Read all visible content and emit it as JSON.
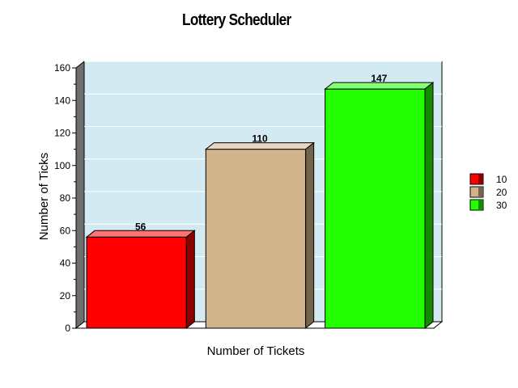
{
  "chart_data": {
    "type": "bar",
    "title": "Lottery Scheduler",
    "xlabel": "Number of Tickets",
    "ylabel": "Number of Ticks",
    "ylim": [
      0,
      160
    ],
    "yticks": [
      0,
      20,
      40,
      60,
      80,
      100,
      120,
      140,
      160
    ],
    "grid": true,
    "legend_position": "right",
    "series": [
      {
        "name": "10",
        "value": 56,
        "label": "56",
        "color": "#ff0000"
      },
      {
        "name": "20",
        "value": 110,
        "label": "110",
        "color": "#d2b48c"
      },
      {
        "name": "30",
        "value": 147,
        "label": "147",
        "color": "#22ff00"
      }
    ],
    "plot_background": "#d3eaf2"
  }
}
